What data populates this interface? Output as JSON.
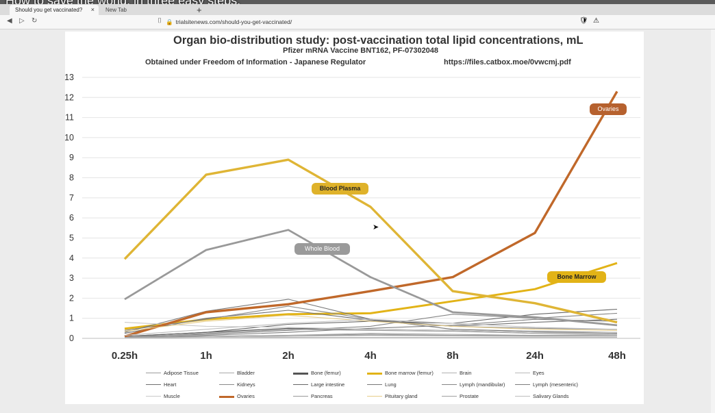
{
  "overlay": {
    "video_title": "How to save the world, in three easy steps."
  },
  "browser": {
    "tabs": [
      {
        "label": "Should you get vaccinated?",
        "close": "×"
      },
      {
        "label": "New Tab"
      }
    ],
    "new_tab": "+",
    "nav": {
      "back": "◀",
      "forward": "▷",
      "reload": "↻"
    },
    "bookmark_icon": "⌷",
    "lock_icon": "🔒",
    "url": "trialsitenews.com/should-you-get-vaccinated/",
    "ext_icons": [
      "🛡",
      "⚠"
    ]
  },
  "slide": {
    "title": "Organ bio-distribution study: post-vaccination total lipid concentrations, mL",
    "subtitle": "Pfizer mRNA Vaccine BNT162, PF-07302048",
    "foi_note": "Obtained under Freedom of Information - Japanese Regulator",
    "source_link": "https://files.catbox.moe/0vwcmj.pdf"
  },
  "chart_data": {
    "type": "line",
    "title": "Organ bio-distribution study: post-vaccination total lipid concentrations, mL",
    "categories": [
      "0.25h",
      "1h",
      "2h",
      "4h",
      "8h",
      "24h",
      "48h"
    ],
    "ylim": [
      0,
      13
    ],
    "yticks": [
      "0",
      "1",
      "2",
      "3",
      "4",
      "5",
      "6",
      "7",
      "8",
      "9",
      "10",
      "11",
      "12",
      "13"
    ],
    "grid": true,
    "legend_position": "bottom",
    "series": [
      {
        "name": "Adipose Tissue",
        "color": "#9a9a9a",
        "values": [
          0.05,
          0.1,
          0.15,
          0.2,
          0.15,
          0.12,
          0.1
        ]
      },
      {
        "name": "Bladder",
        "color": "#a8a8a8",
        "values": [
          0.05,
          0.1,
          0.15,
          0.25,
          0.2,
          0.15,
          0.2
        ]
      },
      {
        "name": "Bone (femur)",
        "color": "#555555",
        "values": [
          0.1,
          0.3,
          0.5,
          0.45,
          0.4,
          0.3,
          0.25
        ]
      },
      {
        "name": "Bone marrow (femur)",
        "color": "#e2b317",
        "values": [
          0.48,
          0.95,
          1.2,
          1.25,
          1.85,
          2.45,
          3.75
        ]
      },
      {
        "name": "Brain",
        "color": "#b0b0b0",
        "values": [
          0.05,
          0.05,
          0.05,
          0.05,
          0.05,
          0.05,
          0.05
        ]
      },
      {
        "name": "Eyes",
        "color": "#b9b9b9",
        "values": [
          0.01,
          0.05,
          0.1,
          0.15,
          0.12,
          0.1,
          0.1
        ]
      },
      {
        "name": "Heart",
        "color": "#6f6f6f",
        "values": [
          0.25,
          1.0,
          1.4,
          0.9,
          0.6,
          0.8,
          0.95
        ]
      },
      {
        "name": "Kidneys",
        "color": "#8a8a8a",
        "values": [
          0.4,
          0.95,
          1.6,
          0.95,
          0.6,
          0.5,
          0.45
        ]
      },
      {
        "name": "Large intestine",
        "color": "#666666",
        "values": [
          0.1,
          0.3,
          0.7,
          0.85,
          0.75,
          1.2,
          1.45
        ]
      },
      {
        "name": "Lung",
        "color": "#777777",
        "values": [
          0.3,
          1.35,
          1.95,
          0.95,
          0.45,
          0.35,
          0.3
        ]
      },
      {
        "name": "Lymph (mandibular)",
        "color": "#858585",
        "values": [
          0.1,
          0.2,
          0.4,
          0.6,
          1.2,
          1.0,
          1.25
        ]
      },
      {
        "name": "Lymph (mesenteric)",
        "color": "#7c7c7c",
        "values": [
          0.05,
          0.15,
          0.3,
          0.5,
          0.65,
          0.95,
          0.85
        ]
      },
      {
        "name": "Muscle",
        "color": "#c9c9c9",
        "values": [
          0.8,
          0.6,
          0.55,
          0.45,
          0.4,
          0.3,
          0.3
        ]
      },
      {
        "name": "Ovaries",
        "color": "#c0682a",
        "values": [
          0.1,
          1.3,
          1.7,
          2.35,
          3.05,
          5.25,
          12.3
        ]
      },
      {
        "name": "Pancreas",
        "color": "#999999",
        "values": [
          0.05,
          0.25,
          0.45,
          0.4,
          0.35,
          0.25,
          0.25
        ]
      },
      {
        "name": "Pituitary gland",
        "color": "#e6cc88",
        "values": [
          0.35,
          0.85,
          1.15,
          0.85,
          0.6,
          0.45,
          0.4
        ]
      },
      {
        "name": "Prostate",
        "color": "#a0a0a0",
        "values": [
          0.05,
          0.1,
          0.15,
          0.15,
          0.15,
          0.15,
          0.15
        ]
      },
      {
        "name": "Salivary Glands",
        "color": "#bdbdbd",
        "values": [
          0.15,
          0.45,
          0.75,
          0.95,
          0.75,
          0.55,
          0.45
        ]
      },
      {
        "name": "Whole Blood",
        "color": "#999999",
        "values": [
          1.95,
          4.4,
          5.4,
          3.05,
          1.3,
          1.05,
          0.65
        ]
      },
      {
        "name": "Blood Plasma",
        "color": "#dfb535",
        "values": [
          3.95,
          8.15,
          8.9,
          6.55,
          2.35,
          1.75,
          0.8
        ]
      }
    ],
    "annotations": [
      {
        "text": "Ovaries",
        "series": "Ovaries",
        "fill": "#b6612e",
        "text_color": "#ffffff"
      },
      {
        "text": "Blood Plasma",
        "series": "Blood Plasma",
        "fill": "#dfb22a",
        "text_color": "#222222"
      },
      {
        "text": "Whole Blood",
        "series": "Whole Blood",
        "fill": "#9a9a9a",
        "text_color": "#ffffff"
      },
      {
        "text": "Bone Marrow",
        "series": "Bone marrow (femur)",
        "fill": "#e2b317",
        "text_color": "#222222"
      }
    ]
  }
}
